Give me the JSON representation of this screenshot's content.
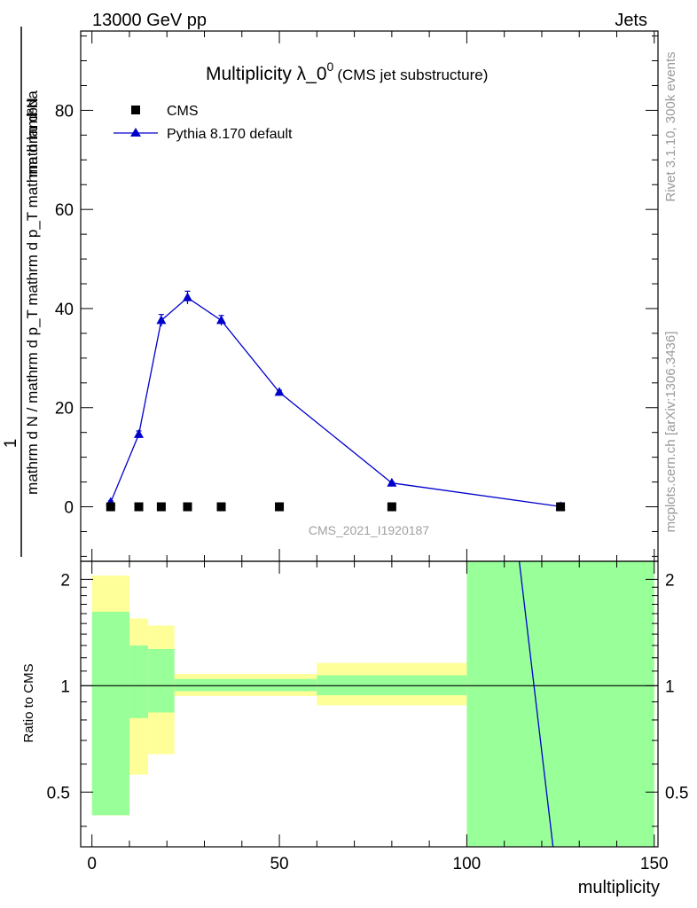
{
  "header": {
    "left": "13000 GeV pp",
    "right": "Jets"
  },
  "side_labels": {
    "rivet": "Rivet 3.1.10,  300k events",
    "mcplots": "mcplots.cern.ch [arXiv:1306.3436]"
  },
  "chart_data": [
    {
      "type": "scatter",
      "title_main": "Multiplicity λ_0",
      "title_sup": "0",
      "title_sub": "(CMS jet substructure)",
      "watermark": "CMS_2021_I1920187",
      "ylabel_num": "1",
      "ylabel_den": "mathrm d N / mathrm d p_T mathrm d p_T mathrm d lambda",
      "ylabel_num2": "mathrm d²N",
      "ylim": [
        -11,
        96
      ],
      "xlim": [
        -3,
        151
      ],
      "yticks": [
        0,
        20,
        40,
        60,
        80
      ],
      "legend_position": "top-left",
      "series": [
        {
          "name": "CMS",
          "marker": "square",
          "color": "#000000",
          "x": [
            5,
            12.5,
            18.5,
            25.5,
            34.5,
            50,
            80,
            125
          ],
          "y": [
            0,
            0,
            0,
            0,
            0,
            0,
            0,
            0
          ]
        },
        {
          "name": "Pythia 8.170 default",
          "marker": "triangle",
          "color": "#0000cc",
          "x": [
            5,
            12.5,
            18.5,
            25.5,
            34.5,
            50,
            80,
            125
          ],
          "y": [
            0.9,
            14.6,
            37.6,
            42.2,
            37.6,
            23.1,
            4.8,
            0.05
          ],
          "yerr": [
            0.3,
            0.7,
            1.2,
            1.3,
            1.0,
            0.4,
            0.2,
            0.0
          ]
        }
      ]
    },
    {
      "type": "ratio",
      "ylabel": "Ratio to CMS",
      "xlabel": "multiplicity",
      "xlim": [
        -3,
        151
      ],
      "ylim": [
        0.35,
        2.25
      ],
      "log_y": true,
      "xticks": [
        0,
        50,
        100,
        150
      ],
      "yticks": [
        0.5,
        1,
        2
      ],
      "bands": [
        {
          "x0": 0,
          "x1": 10,
          "yellow": [
            0.43,
            2.05
          ],
          "green": [
            0.43,
            1.62
          ]
        },
        {
          "x0": 10,
          "x1": 15,
          "yellow": [
            0.56,
            1.55
          ],
          "green": [
            0.81,
            1.3
          ]
        },
        {
          "x0": 15,
          "x1": 22,
          "yellow": [
            0.64,
            1.48
          ],
          "green": [
            0.84,
            1.27
          ]
        },
        {
          "x0": 22,
          "x1": 60,
          "yellow": [
            0.935,
            1.08
          ],
          "green": [
            0.965,
            1.045
          ]
        },
        {
          "x0": 60,
          "x1": 100,
          "yellow": [
            0.88,
            1.16
          ],
          "green": [
            0.94,
            1.07
          ]
        },
        {
          "x0": 100,
          "x1": 150,
          "yellow": [
            0.35,
            2.25
          ],
          "green": [
            0.35,
            2.25
          ]
        }
      ],
      "mc_line": {
        "x": [
          114,
          123
        ],
        "y": [
          2.25,
          0.35
        ],
        "color": "#0000cc"
      }
    }
  ]
}
